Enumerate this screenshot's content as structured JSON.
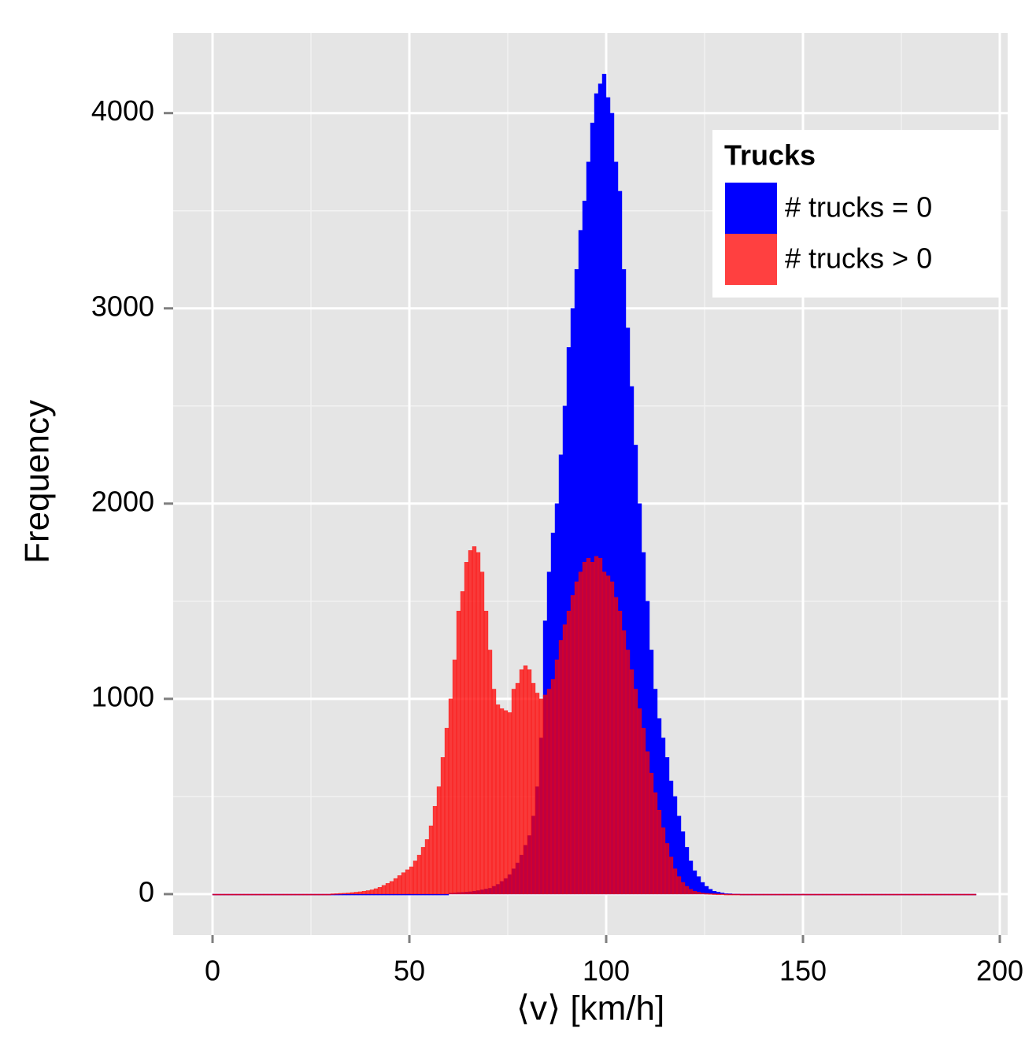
{
  "chart_data": {
    "type": "histogram",
    "x_label": "⟨v⟩ [km/h]",
    "y_label": "Frequency",
    "bins": [
      0,
      1,
      2,
      3,
      4,
      5,
      6,
      7,
      8,
      9,
      10,
      11,
      12,
      13,
      14,
      15,
      16,
      17,
      18,
      19,
      20,
      21,
      22,
      23,
      24,
      25,
      26,
      27,
      28,
      29,
      30,
      31,
      32,
      33,
      34,
      35,
      36,
      37,
      38,
      39,
      40,
      41,
      42,
      43,
      44,
      45,
      46,
      47,
      48,
      49,
      50,
      51,
      52,
      53,
      54,
      55,
      56,
      57,
      58,
      59,
      60,
      61,
      62,
      63,
      64,
      65,
      66,
      67,
      68,
      69,
      70,
      71,
      72,
      73,
      74,
      75,
      76,
      77,
      78,
      79,
      80,
      81,
      82,
      83,
      84,
      85,
      86,
      87,
      88,
      89,
      90,
      91,
      92,
      93,
      94,
      95,
      96,
      97,
      98,
      99,
      100,
      101,
      102,
      103,
      104,
      105,
      106,
      107,
      108,
      109,
      110,
      111,
      112,
      113,
      114,
      115,
      116,
      117,
      118,
      119,
      120,
      121,
      122,
      123,
      124,
      125,
      126,
      127,
      128,
      129,
      130,
      131,
      132,
      133,
      134,
      135,
      136,
      137,
      138,
      139,
      140,
      141,
      142,
      143,
      144,
      145,
      146,
      147,
      148,
      149,
      150,
      151,
      152,
      153,
      154,
      155,
      156,
      157,
      158,
      159,
      160,
      161,
      162,
      163,
      164,
      165,
      166,
      167,
      168,
      169,
      170,
      171,
      172,
      173,
      174,
      175,
      176,
      177,
      178,
      179,
      180,
      181,
      182,
      183,
      184,
      185,
      186,
      187,
      188,
      189,
      190,
      191,
      192,
      193,
      194,
      195,
      196,
      197,
      198
    ],
    "series": [
      {
        "name": "# trucks = 0",
        "color": "#0000ff",
        "values": [
          0,
          0,
          0,
          0,
          0,
          0,
          0,
          0,
          0,
          0,
          0,
          0,
          0,
          0,
          0,
          0,
          0,
          0,
          0,
          0,
          0,
          0,
          0,
          0,
          0,
          0,
          0,
          0,
          0,
          0,
          0,
          0,
          0,
          0,
          0,
          0,
          0,
          0,
          0,
          0,
          0,
          0,
          0,
          0,
          0,
          0,
          0,
          0,
          0,
          0,
          0,
          0,
          0,
          0,
          0,
          0,
          0,
          0,
          0,
          0,
          5,
          6,
          8,
          9,
          10,
          12,
          15,
          18,
          22,
          26,
          30,
          40,
          50,
          65,
          80,
          100,
          130,
          160,
          200,
          250,
          300,
          400,
          550,
          800,
          1400,
          1650,
          1850,
          2000,
          2250,
          2500,
          2800,
          3000,
          3200,
          3400,
          3550,
          3750,
          3950,
          4100,
          4150,
          4200,
          4080,
          4000,
          3750,
          3600,
          3200,
          2900,
          2600,
          2300,
          2000,
          1750,
          1500,
          1250,
          1050,
          900,
          800,
          700,
          580,
          500,
          400,
          320,
          240,
          170,
          120,
          90,
          60,
          40,
          25,
          15,
          10,
          6,
          3,
          2,
          1,
          1,
          0,
          0,
          0,
          0,
          0,
          0,
          0,
          0,
          0,
          0,
          0,
          0,
          0,
          0,
          0,
          0,
          0,
          0,
          0,
          0,
          0,
          0,
          0,
          0,
          0,
          0,
          0,
          0,
          0,
          0,
          0,
          0,
          0,
          0,
          0,
          0,
          0,
          0,
          0,
          0,
          0,
          0,
          0,
          0,
          0,
          0,
          0,
          0,
          0,
          0,
          0,
          0,
          0,
          0,
          0,
          0,
          0,
          0,
          0,
          0
        ]
      },
      {
        "name": "# trucks > 0",
        "color": "#ff0000",
        "values": [
          0,
          0,
          0,
          0,
          0,
          0,
          0,
          0,
          0,
          0,
          0,
          0,
          0,
          0,
          0,
          0,
          0,
          0,
          0,
          0,
          0,
          0,
          0,
          0,
          0,
          0,
          0,
          0,
          0,
          0,
          2,
          3,
          4,
          5,
          6,
          8,
          10,
          12,
          15,
          18,
          22,
          28,
          35,
          45,
          55,
          65,
          80,
          95,
          110,
          125,
          140,
          170,
          200,
          240,
          280,
          350,
          450,
          550,
          700,
          850,
          1000,
          1200,
          1450,
          1550,
          1700,
          1760,
          1780,
          1750,
          1650,
          1450,
          1250,
          1050,
          970,
          950,
          940,
          930,
          1050,
          1080,
          1150,
          1170,
          1150,
          1080,
          1030,
          1000,
          1020,
          1050,
          1100,
          1200,
          1300,
          1380,
          1450,
          1530,
          1600,
          1650,
          1700,
          1720,
          1700,
          1730,
          1720,
          1650,
          1630,
          1600,
          1520,
          1450,
          1350,
          1250,
          1150,
          1050,
          950,
          850,
          730,
          620,
          520,
          430,
          340,
          260,
          190,
          130,
          90,
          60,
          40,
          25,
          15,
          10,
          6,
          4,
          3,
          2,
          1,
          1,
          0,
          0,
          0,
          0,
          0,
          0,
          0,
          0,
          0,
          0,
          0,
          0,
          0,
          0,
          0,
          0,
          0,
          0,
          0,
          0,
          0,
          0,
          0,
          0,
          0,
          0,
          0,
          0,
          0,
          0,
          0,
          0,
          0,
          0,
          0,
          0,
          0,
          0,
          0,
          0,
          0,
          0,
          0,
          0,
          0,
          0,
          0,
          0,
          0,
          0,
          0,
          0,
          0,
          0,
          0,
          0,
          0,
          0,
          0,
          0,
          0,
          0,
          0,
          0
        ]
      }
    ],
    "xlim": [
      -10,
      202
    ],
    "ylim": [
      -210,
      4410
    ],
    "xticks": [
      0,
      50,
      100,
      150,
      200
    ],
    "yticks": [
      0,
      1000,
      2000,
      3000,
      4000
    ],
    "grid": true,
    "legend_title": "Trucks",
    "legend_position": "top-right"
  }
}
